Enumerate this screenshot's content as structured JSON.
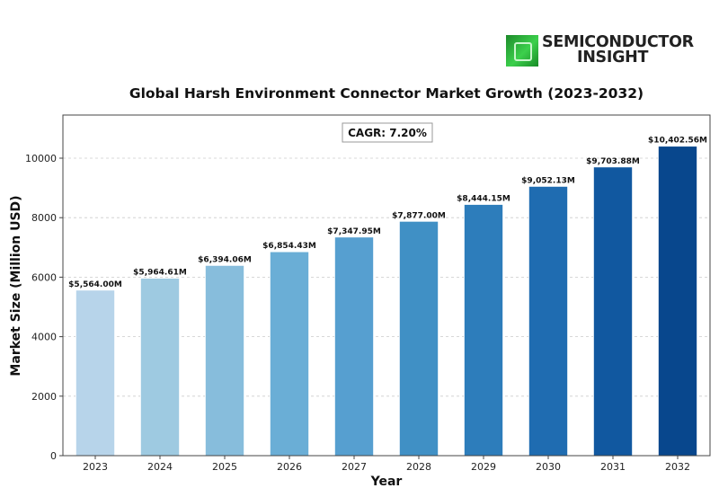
{
  "logo": {
    "line1": "SEMICONDUCTOR",
    "line2": "INSIGHT",
    "icon": "chip-icon"
  },
  "chart_data": {
    "type": "bar",
    "title": "Global Harsh Environment Connector Market Growth (2023-2032)",
    "xlabel": "Year",
    "ylabel": "Market Size (Million USD)",
    "categories": [
      "2023",
      "2024",
      "2025",
      "2026",
      "2027",
      "2028",
      "2029",
      "2030",
      "2031",
      "2032"
    ],
    "values": [
      5564.0,
      5964.61,
      6394.06,
      6854.43,
      7347.95,
      7877.0,
      8444.15,
      9052.13,
      9703.88,
      10402.56
    ],
    "data_labels": [
      "$5,564.00M",
      "$5,964.61M",
      "$6,394.06M",
      "$6,854.43M",
      "$7,347.95M",
      "$7,877.00M",
      "$8,444.15M",
      "$9,052.13M",
      "$9,703.88M",
      "$10,402.56M"
    ],
    "bar_colors": [
      "#b7d4ea",
      "#9ecae1",
      "#87bddc",
      "#6aaed6",
      "#569fd0",
      "#4090c5",
      "#2d7dbb",
      "#1f6cb1",
      "#1158a0",
      "#08478d"
    ],
    "yticks": [
      0,
      2000,
      4000,
      6000,
      8000,
      10000
    ],
    "ytick_labels": [
      "0",
      "2000",
      "4000",
      "6000",
      "8000",
      "10000"
    ],
    "ylim": [
      0,
      11450
    ],
    "grid": "y-dashed",
    "annotation": "CAGR: 7.20%"
  }
}
